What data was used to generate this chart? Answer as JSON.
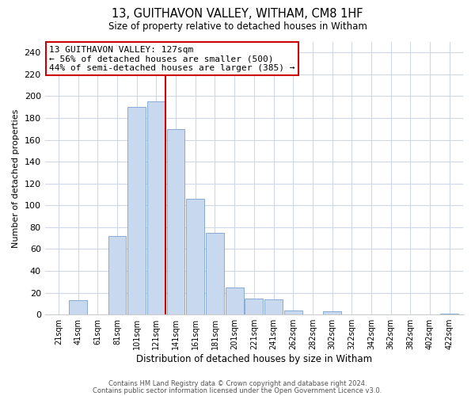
{
  "title": "13, GUITHAVON VALLEY, WITHAM, CM8 1HF",
  "subtitle": "Size of property relative to detached houses in Witham",
  "xlabel": "Distribution of detached houses by size in Witham",
  "ylabel": "Number of detached properties",
  "bar_color": "#c8d8ee",
  "bar_edge_color": "#88aad4",
  "bin_labels": [
    "21sqm",
    "41sqm",
    "61sqm",
    "81sqm",
    "101sqm",
    "121sqm",
    "141sqm",
    "161sqm",
    "181sqm",
    "201sqm",
    "221sqm",
    "241sqm",
    "262sqm",
    "282sqm",
    "302sqm",
    "322sqm",
    "342sqm",
    "362sqm",
    "382sqm",
    "402sqm",
    "422sqm"
  ],
  "bar_heights": [
    0,
    13,
    0,
    72,
    190,
    195,
    170,
    106,
    75,
    25,
    15,
    14,
    4,
    0,
    3,
    0,
    0,
    0,
    0,
    0,
    1
  ],
  "vline_x_index": 5.47,
  "vline_color": "#cc0000",
  "annotation_title": "13 GUITHAVON VALLEY: 127sqm",
  "annotation_line1": "← 56% of detached houses are smaller (500)",
  "annotation_line2": "44% of semi-detached houses are larger (385) →",
  "annotation_box_color": "#ffffff",
  "annotation_box_edge": "#cc0000",
  "ylim": [
    0,
    250
  ],
  "yticks": [
    0,
    20,
    40,
    60,
    80,
    100,
    120,
    140,
    160,
    180,
    200,
    220,
    240
  ],
  "grid_color": "#d0d8e8",
  "footer1": "Contains HM Land Registry data © Crown copyright and database right 2024.",
  "footer2": "Contains public sector information licensed under the Open Government Licence v3.0.",
  "bg_color": "#ffffff",
  "plot_bg_color": "#ffffff"
}
